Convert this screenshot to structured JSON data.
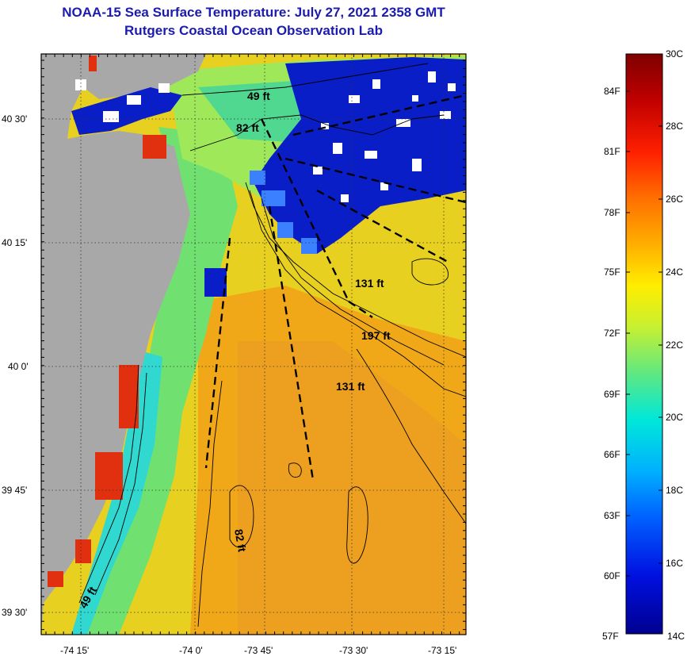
{
  "map": {
    "title": "NOAA-15 Sea Surface Temperature:  July 27, 2021 2358 GMT",
    "subtitle": "Rutgers Coastal Ocean Observation Lab",
    "lon_labels": [
      "-74 15'",
      "-74 0'",
      "-73 45'",
      "-73 30'",
      "-73 15'"
    ],
    "lat_labels": [
      "40 30'",
      "40 15'",
      "40 0'",
      "39 45'",
      "39 30'"
    ],
    "contour_labels": [
      "49 ft",
      "82 ft",
      "131 ft",
      "197 ft",
      "131 ft",
      "82 ft",
      "49 ft"
    ]
  },
  "colorbar": {
    "celsius_labels": [
      "30C",
      "28C",
      "26C",
      "24C",
      "22C",
      "20C",
      "18C",
      "16C",
      "14C"
    ],
    "fahrenheit_labels": [
      "84F",
      "81F",
      "78F",
      "75F",
      "72F",
      "69F",
      "66F",
      "63F",
      "60F",
      "57F"
    ],
    "range_c": [
      14,
      30
    ],
    "colormap": [
      "#7f0000",
      "#c00000",
      "#ff2000",
      "#ff7000",
      "#ffb000",
      "#ffee00",
      "#c8f030",
      "#60e880",
      "#00e8d8",
      "#00b0ff",
      "#0060ff",
      "#0010e0",
      "#000090"
    ]
  },
  "legend": {
    "land_color": "#a8a8a8",
    "cloud_color": "#ffffff"
  }
}
